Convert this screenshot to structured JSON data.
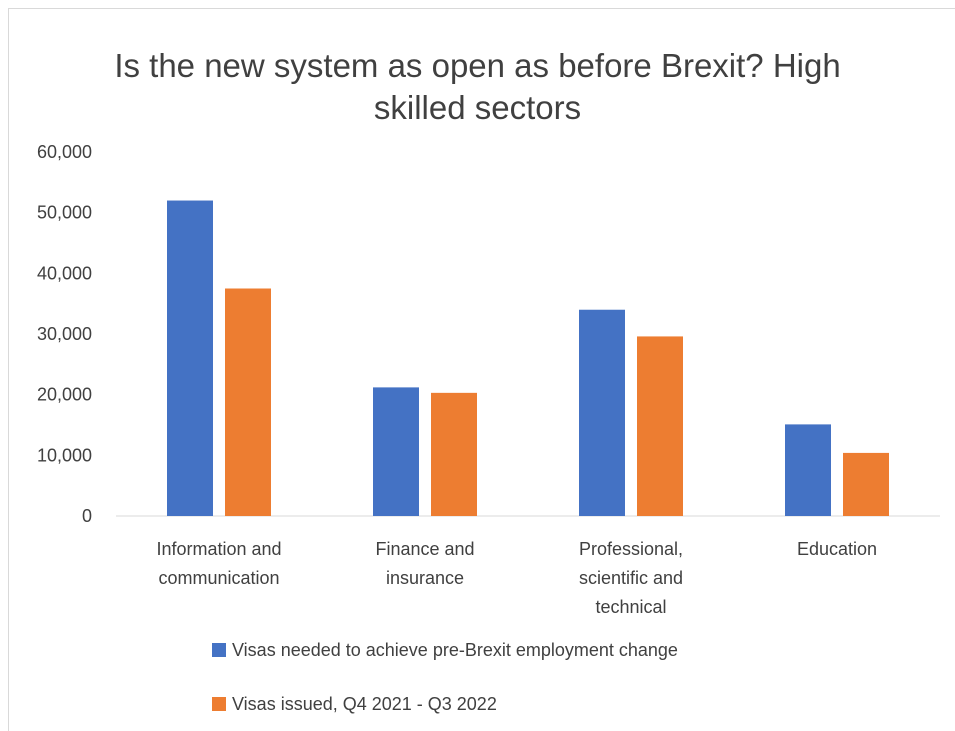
{
  "chart_data": {
    "type": "bar",
    "title_lines": [
      "Is the new system as open as before Brexit? High",
      "skilled sectors"
    ],
    "categories": [
      [
        "Information and",
        "communication"
      ],
      [
        "Finance and",
        "insurance"
      ],
      [
        "Professional,",
        "scientific and",
        "technical"
      ],
      [
        "Education"
      ]
    ],
    "series": [
      {
        "name": "Visas needed to achieve pre-Brexit employment change",
        "color": "#4472C4",
        "values": [
          52000,
          21200,
          34000,
          15100
        ]
      },
      {
        "name": "Visas issued, Q4 2021 - Q3 2022",
        "color": "#ED7D31",
        "values": [
          37500,
          20300,
          29600,
          10400
        ]
      }
    ],
    "yticks": [
      "0",
      "10,000",
      "20,000",
      "30,000",
      "40,000",
      "50,000",
      "60,000"
    ],
    "ylim": [
      0,
      60000
    ],
    "grid": false,
    "legend_position": "bottom"
  }
}
